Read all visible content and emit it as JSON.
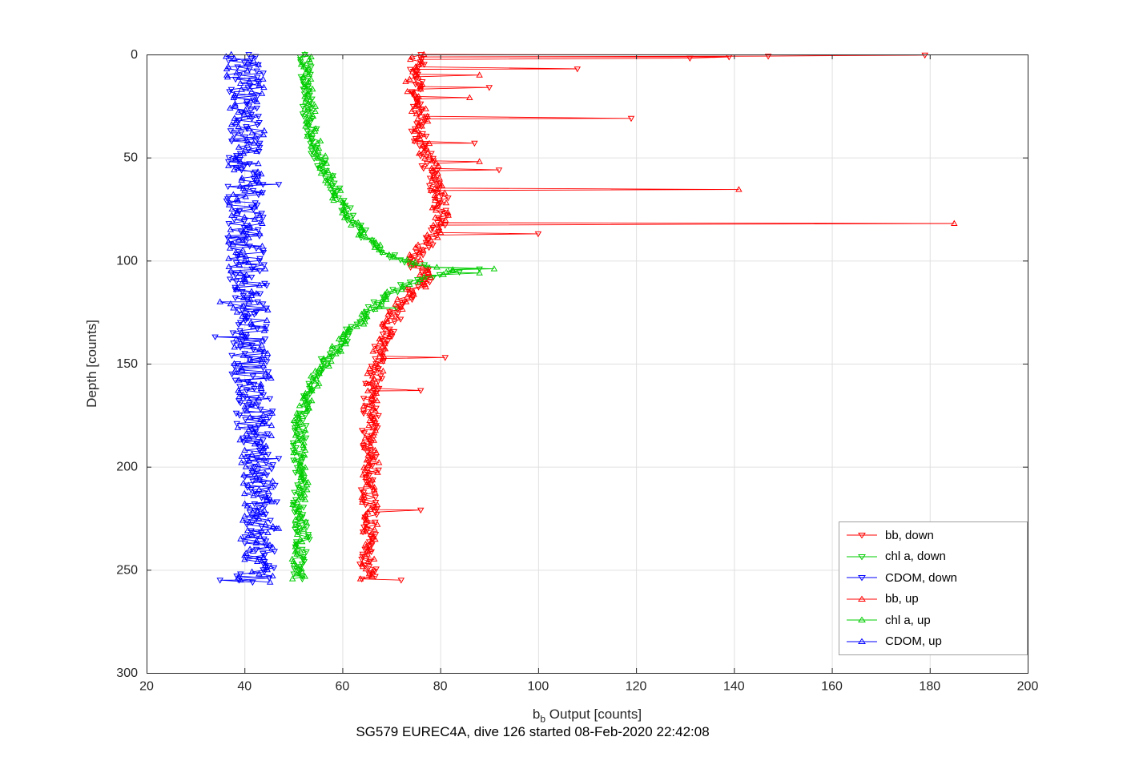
{
  "figure": {
    "background": "#ffffff",
    "ylabel": "Depth [counts]",
    "xlabel": {
      "base": "b",
      "sub": "b",
      "rest": " Output [counts]"
    },
    "title_bottom": "SG579 EUREC4A, dive 126 started 08-Feb-2020 22:42:08"
  },
  "chart_data": {
    "type": "line",
    "title": "SG579 EUREC4A, dive 126 started 08-Feb-2020 22:42:08",
    "xlabel": "b_b Output [counts]",
    "ylabel": "Depth [counts]",
    "xlim": [
      20,
      200
    ],
    "ylim": [
      0,
      300
    ],
    "depth_axis_points_down": true,
    "grid": true,
    "xticks": [
      20,
      40,
      60,
      80,
      100,
      120,
      140,
      160,
      180,
      200
    ],
    "yticks": [
      0,
      50,
      100,
      150,
      200,
      250,
      300
    ],
    "axis_color": "#262626",
    "grid_color": "#e0e0e0",
    "legend": {
      "position": "lower-right",
      "border_color": "#a0a0a0"
    },
    "series": [
      {
        "name": "bb, down",
        "color": "#ff0000",
        "marker": "triangle-down",
        "seed": 11,
        "noise": 1.7,
        "step": 1.2,
        "depth_range": [
          0,
          255
        ],
        "profile_depth_x": [
          [
            0,
            76
          ],
          [
            10,
            75
          ],
          [
            20,
            75.5
          ],
          [
            30,
            76
          ],
          [
            40,
            75.5
          ],
          [
            48,
            77
          ],
          [
            55,
            78
          ],
          [
            62,
            79
          ],
          [
            70,
            80
          ],
          [
            78,
            80.5
          ],
          [
            85,
            79.5
          ],
          [
            90,
            78
          ],
          [
            96,
            75.5
          ],
          [
            100,
            74
          ],
          [
            104,
            76
          ],
          [
            108,
            78.5
          ],
          [
            112,
            76
          ],
          [
            116,
            73.5
          ],
          [
            121,
            72
          ],
          [
            127,
            70.5
          ],
          [
            134,
            69
          ],
          [
            142,
            68
          ],
          [
            150,
            67.5
          ],
          [
            158,
            66.5
          ],
          [
            168,
            66
          ],
          [
            180,
            65.5
          ],
          [
            195,
            66
          ],
          [
            210,
            65.5
          ],
          [
            225,
            66
          ],
          [
            240,
            65
          ],
          [
            255,
            65.5
          ]
        ],
        "outliers_depth_x": [
          [
            0.3,
            179
          ],
          [
            0.8,
            147
          ],
          [
            1.2,
            139
          ],
          [
            1.8,
            131
          ],
          [
            7,
            108
          ],
          [
            16,
            90
          ],
          [
            31,
            119
          ],
          [
            43,
            87
          ],
          [
            56,
            92
          ],
          [
            87,
            100
          ],
          [
            147,
            81
          ],
          [
            163,
            76
          ],
          [
            221,
            76
          ],
          [
            255,
            72
          ]
        ]
      },
      {
        "name": "chl a, down",
        "color": "#00cc00",
        "marker": "triangle-down",
        "seed": 22,
        "noise": 1.4,
        "step": 1.2,
        "depth_range": [
          0,
          255
        ],
        "profile_depth_x": [
          [
            0,
            52
          ],
          [
            12,
            53
          ],
          [
            25,
            53
          ],
          [
            38,
            54
          ],
          [
            48,
            55
          ],
          [
            58,
            57
          ],
          [
            68,
            59
          ],
          [
            78,
            61.5
          ],
          [
            86,
            64
          ],
          [
            93,
            67
          ],
          [
            99,
            71
          ],
          [
            103,
            77
          ],
          [
            105,
            84
          ],
          [
            107,
            80
          ],
          [
            110,
            74
          ],
          [
            114,
            70.5
          ],
          [
            119,
            68
          ],
          [
            125,
            65.5
          ],
          [
            131,
            63
          ],
          [
            139,
            60
          ],
          [
            147,
            57
          ],
          [
            156,
            54.5
          ],
          [
            166,
            52.5
          ],
          [
            178,
            51.5
          ],
          [
            192,
            51
          ],
          [
            206,
            52
          ],
          [
            220,
            51
          ],
          [
            234,
            52
          ],
          [
            248,
            51
          ],
          [
            255,
            50.5
          ]
        ],
        "outliers_depth_x": [
          [
            104,
            88
          ],
          [
            123,
            71
          ]
        ]
      },
      {
        "name": "CDOM, down",
        "color": "#0000ff",
        "marker": "triangle-down",
        "seed": 33,
        "noise": 3.8,
        "step": 1.0,
        "depth_range": [
          0,
          256
        ],
        "profile_depth_x": [
          [
            0,
            40.5
          ],
          [
            25,
            40
          ],
          [
            50,
            40
          ],
          [
            75,
            40
          ],
          [
            100,
            40.5
          ],
          [
            125,
            41
          ],
          [
            150,
            41
          ],
          [
            175,
            42
          ],
          [
            200,
            43
          ],
          [
            225,
            43.5
          ],
          [
            245,
            43
          ],
          [
            256,
            41.5
          ]
        ],
        "outliers_depth_x": [
          [
            63,
            47
          ],
          [
            137,
            34
          ],
          [
            196,
            47
          ],
          [
            255,
            35
          ]
        ]
      },
      {
        "name": "bb, up",
        "color": "#ff0000",
        "marker": "triangle-up",
        "seed": 44,
        "noise": 1.7,
        "step": 1.2,
        "depth_range": [
          0,
          255
        ],
        "profile_depth_x": [
          [
            0,
            75.5
          ],
          [
            12,
            74.5
          ],
          [
            25,
            75.5
          ],
          [
            38,
            76
          ],
          [
            50,
            77.5
          ],
          [
            60,
            79
          ],
          [
            70,
            80
          ],
          [
            80,
            80
          ],
          [
            88,
            78.5
          ],
          [
            94,
            76
          ],
          [
            100,
            74.5
          ],
          [
            105,
            76.5
          ],
          [
            110,
            77.5
          ],
          [
            115,
            74
          ],
          [
            121,
            72
          ],
          [
            128,
            70
          ],
          [
            136,
            68.5
          ],
          [
            145,
            67.5
          ],
          [
            155,
            66.5
          ],
          [
            168,
            66
          ],
          [
            182,
            65.5
          ],
          [
            196,
            66
          ],
          [
            212,
            65.5
          ],
          [
            228,
            65.5
          ],
          [
            242,
            65
          ],
          [
            255,
            65
          ]
        ],
        "outliers_depth_x": [
          [
            10,
            88
          ],
          [
            21,
            86
          ],
          [
            52,
            88
          ],
          [
            65.5,
            141
          ],
          [
            82,
            185
          ]
        ]
      },
      {
        "name": "chl a, up",
        "color": "#00cc00",
        "marker": "triangle-up",
        "seed": 55,
        "noise": 1.4,
        "step": 1.2,
        "depth_range": [
          0,
          255
        ],
        "profile_depth_x": [
          [
            0,
            52.5
          ],
          [
            15,
            53.5
          ],
          [
            30,
            53.5
          ],
          [
            45,
            54.5
          ],
          [
            55,
            56
          ],
          [
            65,
            58
          ],
          [
            75,
            60.5
          ],
          [
            84,
            63
          ],
          [
            91,
            66
          ],
          [
            97,
            69.5
          ],
          [
            102,
            75
          ],
          [
            105,
            83
          ],
          [
            108,
            78
          ],
          [
            112,
            72.5
          ],
          [
            117,
            69
          ],
          [
            123,
            66.5
          ],
          [
            129,
            64
          ],
          [
            137,
            61
          ],
          [
            145,
            58
          ],
          [
            154,
            55
          ],
          [
            164,
            53
          ],
          [
            176,
            51.5
          ],
          [
            190,
            51
          ],
          [
            204,
            52
          ],
          [
            218,
            51
          ],
          [
            232,
            52
          ],
          [
            246,
            51
          ],
          [
            255,
            51
          ]
        ],
        "outliers_depth_x": [
          [
            104,
            91
          ],
          [
            106,
            88
          ]
        ]
      },
      {
        "name": "CDOM, up",
        "color": "#0000ff",
        "marker": "triangle-up",
        "seed": 66,
        "noise": 3.8,
        "step": 1.0,
        "depth_range": [
          0,
          256
        ],
        "profile_depth_x": [
          [
            0,
            40
          ],
          [
            25,
            40.5
          ],
          [
            50,
            40
          ],
          [
            75,
            40.5
          ],
          [
            100,
            40.5
          ],
          [
            125,
            41
          ],
          [
            150,
            41.5
          ],
          [
            175,
            42
          ],
          [
            200,
            43
          ],
          [
            225,
            43
          ],
          [
            245,
            42.5
          ],
          [
            256,
            42
          ]
        ],
        "outliers_depth_x": [
          [
            120,
            35
          ],
          [
            230,
            47
          ]
        ]
      }
    ]
  }
}
